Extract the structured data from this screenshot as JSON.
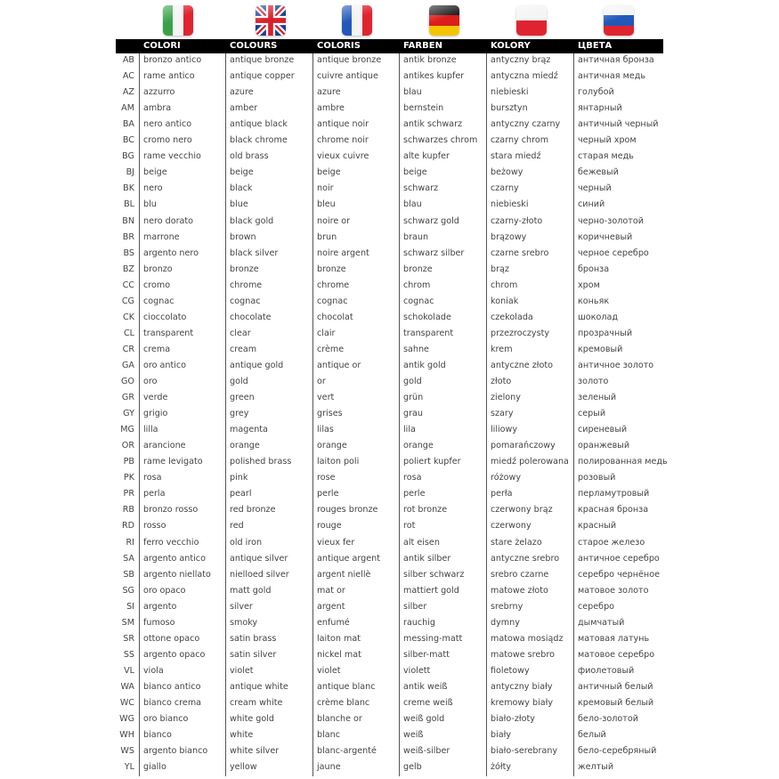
{
  "flags": [
    {
      "icon": "italy-flag-icon",
      "colors": [
        "#3aa14a",
        "#f4f4f4",
        "#e0242f"
      ]
    },
    {
      "icon": "uk-flag-icon",
      "colors": [
        "#1f3d8f",
        "#ffffff",
        "#d8202c"
      ]
    },
    {
      "icon": "france-flag-icon",
      "colors": [
        "#2258b8",
        "#f4f4f4",
        "#e0242f"
      ]
    },
    {
      "icon": "germany-flag-icon",
      "colors": [
        "#222222",
        "#dd1c1c",
        "#f5c400"
      ]
    },
    {
      "icon": "poland-flag-icon",
      "colors": [
        "#f4f4f4",
        "#e0242f"
      ]
    },
    {
      "icon": "russia-flag-icon",
      "colors": [
        "#f4f4f4",
        "#2258b8",
        "#e0242f"
      ]
    }
  ],
  "headers": [
    "COLORI",
    "COLOURS",
    "COLORIS",
    "FARBEN",
    "KOLORY",
    "ЦВЕТА"
  ],
  "rows": [
    [
      "AB",
      "bronzo antico",
      "antique bronze",
      "antique bronze",
      "antik bronze",
      "antyczny brąz",
      "античная бронза"
    ],
    [
      "AC",
      "rame antico",
      "antique copper",
      "cuivre antique",
      "antikes kupfer",
      "antyczna miedź",
      "античная медь"
    ],
    [
      "AZ",
      "azzurro",
      "azure",
      "azure",
      "blau",
      "niebieski",
      "голубой"
    ],
    [
      "AM",
      "ambra",
      "amber",
      "ambre",
      "bernstein",
      "bursztyn",
      "янтарный"
    ],
    [
      "BA",
      "nero antico",
      "antique black",
      "antique noir",
      "antik schwarz",
      "antyczny czarny",
      "античный черный"
    ],
    [
      "BC",
      "cromo nero",
      "black chrome",
      "chrome noir",
      "schwarzes chrom",
      "czarny chrom",
      "черный хром"
    ],
    [
      "BG",
      "rame vecchio",
      "old brass",
      "vieux cuivre",
      "alte kupfer",
      "stara miedź",
      "старая медь"
    ],
    [
      "BJ",
      "beige",
      "beige",
      "beige",
      "beige",
      "beżowy",
      "бежевый"
    ],
    [
      "BK",
      "nero",
      "black",
      "noir",
      "schwarz",
      "czarny",
      "черный"
    ],
    [
      "BL",
      "blu",
      "blue",
      "bleu",
      "blau",
      "niebieski",
      "синий"
    ],
    [
      "BN",
      "nero dorato",
      "black gold",
      "noire or",
      "schwarz gold",
      "czarny-złoto",
      "черно-золотой"
    ],
    [
      "BR",
      "marrone",
      "brown",
      "brun",
      "braun",
      "brązowy",
      "коричневый"
    ],
    [
      "BS",
      "argento nero",
      "black silver",
      "noire argent",
      "schwarz silber",
      "czarne srebro",
      "черное серебро"
    ],
    [
      "BZ",
      "bronzo",
      "bronze",
      "bronze",
      "bronze",
      "brąz",
      "бронза"
    ],
    [
      "CC",
      "cromo",
      "chrome",
      "chrome",
      "chrom",
      "chrom",
      "хром"
    ],
    [
      "CG",
      "cognac",
      "cognac",
      "cognac",
      "cognac",
      "koniak",
      "коньяк"
    ],
    [
      "CK",
      "cioccolato",
      "chocolate",
      "chocolat",
      "schokolade",
      "czekolada",
      "шоколад"
    ],
    [
      "CL",
      "transparent",
      "clear",
      "clair",
      "transparent",
      "przezroczysty",
      "прозрачный"
    ],
    [
      "CR",
      "crema",
      "cream",
      "crème",
      "sahne",
      "krem",
      "кремовый"
    ],
    [
      "GA",
      "oro antico",
      "antique gold",
      "antique or",
      "antik gold",
      "antyczne złoto",
      "античное золото"
    ],
    [
      "GO",
      "oro",
      "gold",
      "or",
      "gold",
      "złoto",
      "золото"
    ],
    [
      "GR",
      "verde",
      "green",
      "vert",
      "grün",
      "zielony",
      "зеленый"
    ],
    [
      "GY",
      "grigio",
      "grey",
      "grises",
      "grau",
      "szary",
      "серый"
    ],
    [
      "MG",
      "lilla",
      "magenta",
      "lilas",
      "lila",
      "liliowy",
      "сиреневый"
    ],
    [
      "OR",
      "arancione",
      "orange",
      "orange",
      "orange",
      "pomarańczowy",
      "оранжевый"
    ],
    [
      "PB",
      "rame levigato",
      "polished brass",
      "laiton poli",
      "poliert kupfer",
      "miedź polerowana",
      "полированная медь"
    ],
    [
      "PK",
      "rosa",
      "pink",
      "rose",
      "rosa",
      "różowy",
      "розовый"
    ],
    [
      "PR",
      "perla",
      "pearl",
      "perle",
      "perle",
      "perła",
      "перламутровый"
    ],
    [
      "RB",
      "bronzo rosso",
      "red bronze",
      "rouges bronze",
      "rot bronze",
      "czerwony brąz",
      "красная бронза"
    ],
    [
      "RD",
      "rosso",
      "red",
      "rouge",
      "rot",
      "czerwony",
      "красный"
    ],
    [
      "RI",
      "ferro vecchio",
      "old iron",
      "vieux fer",
      "alt eisen",
      "stare żelazo",
      "старое железо"
    ],
    [
      "SA",
      "argento antico",
      "antique silver",
      "antique argent",
      "antik silber",
      "antyczne srebro",
      "античное серебро"
    ],
    [
      "SB",
      "argento niellato",
      "nielloed silver",
      "argent niellè",
      "silber schwarz",
      "srebro czarne",
      "серебро чернёное"
    ],
    [
      "SG",
      "oro opaco",
      "matt gold",
      "mat or",
      "mattiert gold",
      "matowe złoto",
      "матовое золото"
    ],
    [
      "SI",
      "argento",
      "silver",
      "argent",
      "silber",
      "srebrny",
      "серебро"
    ],
    [
      "SM",
      "fumoso",
      "smoky",
      "enfumé",
      "rauchig",
      "dymny",
      "дымчатый"
    ],
    [
      "SR",
      "ottone opaco",
      "satin brass",
      "laiton mat",
      "messing-matt",
      "matowa mosiądz",
      "матовая латунь"
    ],
    [
      "SS",
      "argento opaco",
      "satin silver",
      "nickel mat",
      "silber-matt",
      "matowe srebro",
      "матовое серебро"
    ],
    [
      "VL",
      "viola",
      "violet",
      "violet",
      "violett",
      "fioletowy",
      "фиолетовый"
    ],
    [
      "WA",
      "bianco antico",
      "antique white",
      "antique blanc",
      "antik weiß",
      "antyczny biały",
      "античный белый"
    ],
    [
      "WC",
      "bianco crema",
      "cream white",
      "crème blanc",
      "creme weiß",
      "kremowy biały",
      "кремовый белый"
    ],
    [
      "WG",
      "oro bianco",
      "white gold",
      "blanche or",
      "weiß gold",
      "biało-złoty",
      "бело-золотой"
    ],
    [
      "WH",
      "bianco",
      "white",
      "blanc",
      "weiß",
      "biały",
      "белый"
    ],
    [
      "WS",
      "argento bianco",
      "white silver",
      "blanc-argenté",
      "weiß-silber",
      "biało-serebrany",
      "бело-серебряный"
    ],
    [
      "YL",
      "giallo",
      "yellow",
      "jaune",
      "gelb",
      "żółty",
      "желтый"
    ]
  ]
}
